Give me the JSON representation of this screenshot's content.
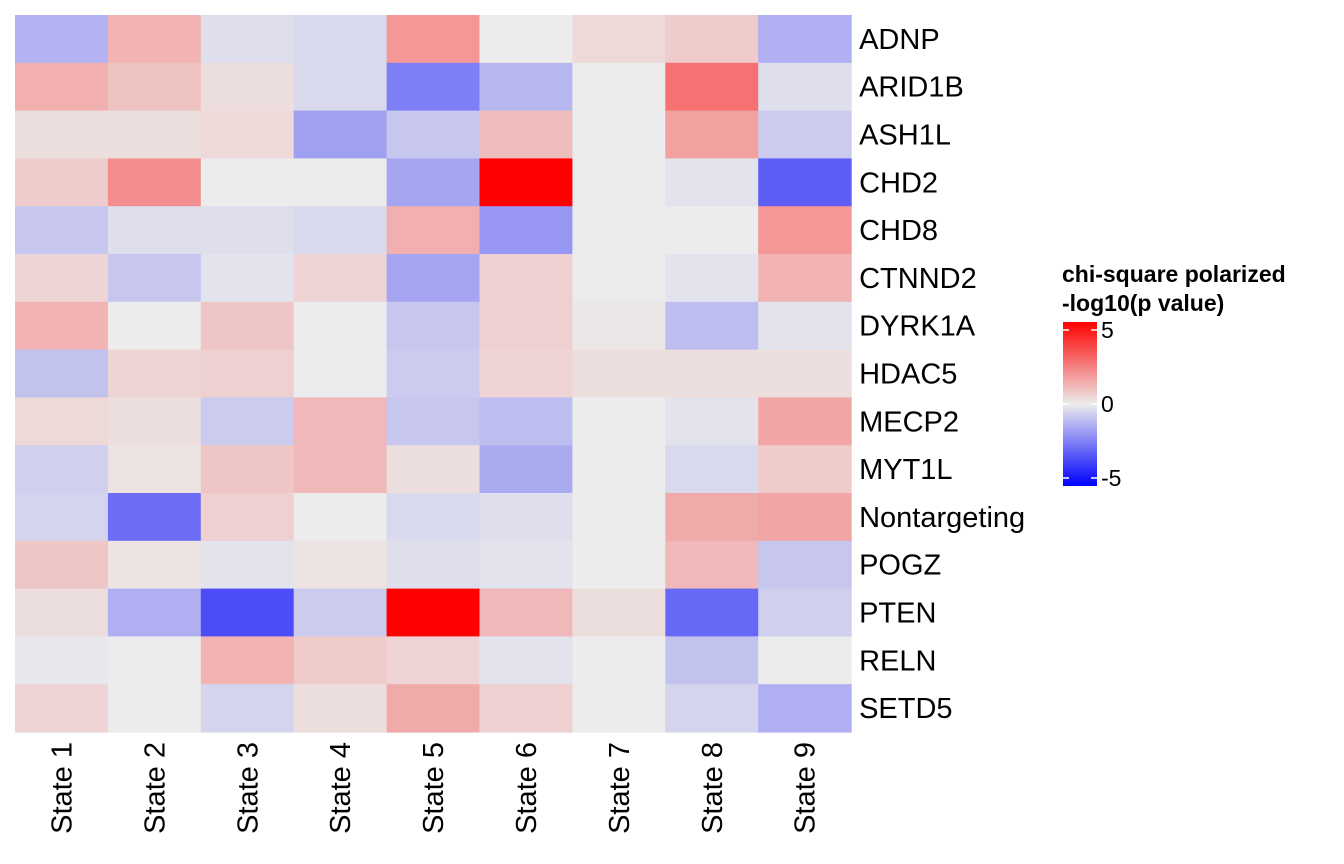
{
  "chart_data": {
    "type": "heatmap",
    "columns": [
      "State 1",
      "State 2",
      "State 3",
      "State 4",
      "State 5",
      "State 6",
      "State 7",
      "State 8",
      "State 9"
    ],
    "rows": [
      "ADNP",
      "ARID1B",
      "ASH1L",
      "CHD2",
      "CHD8",
      "CTNND2",
      "DYRK1A",
      "HDAC5",
      "MECP2",
      "MYT1L",
      "Nontargeting",
      "POGZ",
      "PTEN",
      "RELN",
      "SETD5"
    ],
    "values": [
      [
        -1.2,
        1.2,
        -0.3,
        -0.4,
        1.8,
        0.0,
        0.4,
        0.7,
        -1.3
      ],
      [
        1.3,
        0.9,
        0.3,
        -0.4,
        -2.3,
        -1.1,
        0.0,
        2.6,
        -0.3
      ],
      [
        0.3,
        0.3,
        0.4,
        -1.6,
        -0.8,
        1.0,
        0.0,
        1.6,
        -0.7
      ],
      [
        0.7,
        2.0,
        0.0,
        0.0,
        -1.5,
        5.5,
        0.0,
        -0.2,
        -3.0
      ],
      [
        -0.8,
        -0.3,
        -0.3,
        -0.4,
        1.3,
        -1.8,
        0.0,
        0.0,
        1.8
      ],
      [
        0.5,
        -0.8,
        -0.2,
        0.5,
        -1.5,
        0.6,
        0.0,
        -0.2,
        1.2
      ],
      [
        1.2,
        0.0,
        0.8,
        0.0,
        -0.8,
        0.6,
        0.1,
        -1.0,
        -0.2
      ],
      [
        -0.9,
        0.5,
        0.6,
        0.0,
        -0.7,
        0.5,
        0.3,
        0.3,
        0.3
      ],
      [
        0.4,
        0.3,
        -0.7,
        1.1,
        -0.8,
        -1.0,
        0.0,
        -0.2,
        1.5
      ],
      [
        -0.6,
        0.2,
        0.8,
        1.1,
        0.3,
        -1.4,
        0.0,
        -0.4,
        0.7
      ],
      [
        -0.5,
        -2.7,
        0.6,
        0.0,
        -0.4,
        -0.3,
        0.0,
        1.4,
        1.5
      ],
      [
        0.8,
        0.2,
        -0.2,
        0.2,
        -0.3,
        -0.2,
        0.0,
        1.1,
        -0.8
      ],
      [
        0.3,
        -1.3,
        -3.4,
        -0.7,
        5.5,
        1.1,
        0.3,
        -2.8,
        -0.6
      ],
      [
        -0.1,
        0.0,
        1.2,
        0.7,
        0.5,
        -0.2,
        0.0,
        -0.9,
        0.0
      ],
      [
        0.5,
        0.0,
        -0.5,
        0.3,
        1.4,
        0.6,
        0.0,
        -0.5,
        -1.3
      ]
    ],
    "colorscale": {
      "low": "#0000ff",
      "mid": "#ececec",
      "high": "#ff0000",
      "min": -5,
      "max": 5
    },
    "legend": {
      "title_line1": "chi-square polarized",
      "title_line2": "-log10(p value)",
      "ticks": [
        "5",
        "0",
        "-5"
      ],
      "tick_values": [
        5,
        0,
        -5
      ],
      "position": "right"
    }
  }
}
